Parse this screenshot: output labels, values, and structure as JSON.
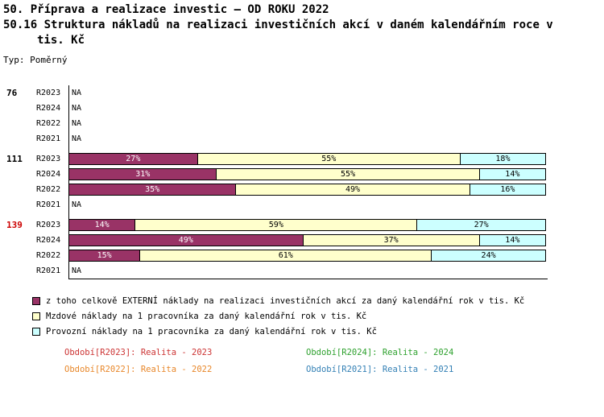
{
  "header": {
    "line1": "50. Příprava a realizace investic – OD ROKU 2022",
    "line2": "50.16 Struktura nákladů na realizaci investičních akcí v daném kalendářním roce v",
    "line3": "tis. Kč",
    "type_label": "Typ: Poměrný"
  },
  "chart_data": {
    "type": "bar",
    "orientation": "horizontal",
    "stacked": true,
    "value_unit": "%",
    "x_range": [
      0,
      100
    ],
    "na_label": "NA",
    "series": [
      {
        "name": "external-costs",
        "color": "#993366",
        "value_text_color": "#FFFFFF"
      },
      {
        "name": "wage-costs",
        "color": "#FFFFCC",
        "value_text_color": "#000000"
      },
      {
        "name": "operating-costs",
        "color": "#CCFFFF",
        "value_text_color": "#000000"
      }
    ],
    "groups": [
      {
        "label": "76",
        "label_color": "#000000",
        "rows": [
          {
            "period": "R2023",
            "values": null
          },
          {
            "period": "R2024",
            "values": null
          },
          {
            "period": "R2022",
            "values": null
          },
          {
            "period": "R2021",
            "values": null
          }
        ]
      },
      {
        "label": "111",
        "label_color": "#000000",
        "rows": [
          {
            "period": "R2023",
            "values": [
              27,
              55,
              18
            ]
          },
          {
            "period": "R2024",
            "values": [
              31,
              55,
              14
            ]
          },
          {
            "period": "R2022",
            "values": [
              35,
              49,
              16
            ]
          },
          {
            "period": "R2021",
            "values": null
          }
        ]
      },
      {
        "label": "139",
        "label_color": "#CC0000",
        "rows": [
          {
            "period": "R2023",
            "values": [
              14,
              59,
              27
            ]
          },
          {
            "period": "R2024",
            "values": [
              49,
              37,
              14
            ]
          },
          {
            "period": "R2022",
            "values": [
              15,
              61,
              24
            ]
          },
          {
            "period": "R2021",
            "values": null
          }
        ]
      }
    ]
  },
  "legend": [
    {
      "color": "#993366",
      "label": "z toho celkově EXTERNÍ náklady na realizaci investičních akcí za daný kalendářní rok v tis. Kč"
    },
    {
      "color": "#FFFFCC",
      "label": "Mzdové náklady na 1 pracovníka za daný kalendářní rok v tis. Kč"
    },
    {
      "color": "#CCFFFF",
      "label": "Provozní náklady na 1 pracovníka za daný kalendářní rok v tis. Kč"
    }
  ],
  "periods": [
    {
      "label": "Období[R2023]: Realita - 2023",
      "color": "#CC3333"
    },
    {
      "label": "Období[R2024]: Realita - 2024",
      "color": "#2EA12E"
    },
    {
      "label": "Období[R2022]: Realita - 2022",
      "color": "#E8872A"
    },
    {
      "label": "Období[R2021]: Realita - 2021",
      "color": "#3380B5"
    }
  ]
}
